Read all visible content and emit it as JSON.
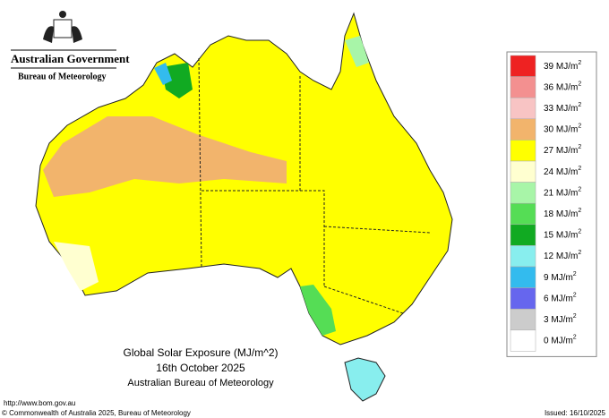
{
  "header": {
    "government": "Australian Government",
    "bureau": "Bureau of Meteorology"
  },
  "title": {
    "line1": "Global Solar Exposure (MJ/m^2)",
    "line2": "16th October 2025",
    "line3": "Australian Bureau of Meteorology"
  },
  "legend": [
    {
      "label": "39 MJ/m",
      "sup": "2",
      "color": "#ee2222"
    },
    {
      "label": "36 MJ/m",
      "sup": "2",
      "color": "#f39090"
    },
    {
      "label": "33 MJ/m",
      "sup": "2",
      "color": "#f8c4c4"
    },
    {
      "label": "30 MJ/m",
      "sup": "2",
      "color": "#f2b46c"
    },
    {
      "label": "27 MJ/m",
      "sup": "2",
      "color": "#ffff00"
    },
    {
      "label": "24 MJ/m",
      "sup": "2",
      "color": "#ffffd0"
    },
    {
      "label": "21 MJ/m",
      "sup": "2",
      "color": "#a8f5a8"
    },
    {
      "label": "18 MJ/m",
      "sup": "2",
      "color": "#55dd55"
    },
    {
      "label": "15 MJ/m",
      "sup": "2",
      "color": "#11aa22"
    },
    {
      "label": "12 MJ/m",
      "sup": "2",
      "color": "#88eeee"
    },
    {
      "label": "9 MJ/m",
      "sup": "2",
      "color": "#33bbee"
    },
    {
      "label": "6 MJ/m",
      "sup": "2",
      "color": "#6666ee"
    },
    {
      "label": "3 MJ/m",
      "sup": "2",
      "color": "#cccccc"
    },
    {
      "label": "0 MJ/m",
      "sup": "2",
      "color": "#ffffff"
    }
  ],
  "footer": {
    "url": "http://www.bom.gov.au",
    "copyright": "© Commonwealth of Australia 2025, Bureau of Meteorology",
    "issued": "Issued: 16/10/2025"
  }
}
